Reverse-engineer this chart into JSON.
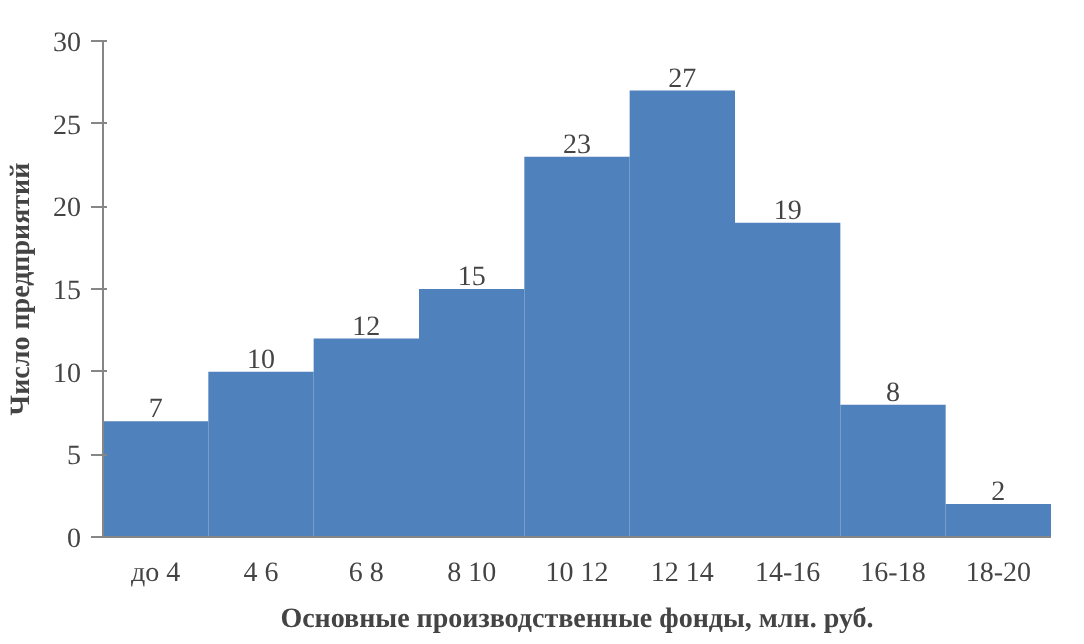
{
  "chart_data": {
    "type": "bar",
    "xlabel": "Основные производственные фонды, млн. руб.",
    "ylabel": "Число предприятий",
    "categories": [
      "до 4",
      "4 6",
      "6 8",
      "8 10",
      "10 12",
      "12 14",
      "14-16",
      "16-18",
      "18-20"
    ],
    "values": [
      7,
      10,
      12,
      15,
      23,
      27,
      19,
      8,
      2
    ],
    "color": "#4f81bd",
    "ylim": [
      0,
      30
    ],
    "yticks": [
      0,
      5,
      10,
      15,
      20,
      25,
      30
    ],
    "grid": false,
    "data_labels": true
  }
}
